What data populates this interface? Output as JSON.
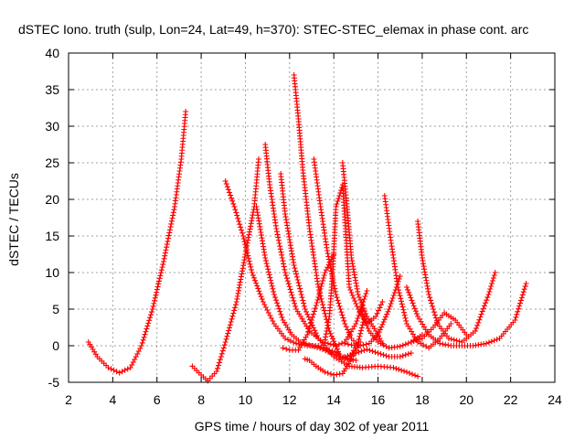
{
  "chart_data": {
    "type": "scatter",
    "title": "dSTEC Iono. truth (sulp, Lon=24, Lat=49, h=370): STEC-STEC_elemax in phase cont. arc",
    "xlabel": "GPS time / hours of day 302 of year 2011",
    "ylabel": "dSTEC  / TECUs",
    "xlim": [
      2,
      24
    ],
    "ylim": [
      -5,
      40
    ],
    "xticks": [
      2,
      4,
      6,
      8,
      10,
      12,
      14,
      16,
      18,
      20,
      22,
      24
    ],
    "yticks": [
      -5,
      0,
      5,
      10,
      15,
      20,
      25,
      30,
      35,
      40
    ],
    "grid": true,
    "marker": "+",
    "color": "#ff0000",
    "series": [
      {
        "x": [
          2.9,
          3.3,
          3.8,
          4.3,
          4.8,
          5.3,
          5.8,
          6.3,
          6.8,
          7.1,
          7.3
        ],
        "y": [
          0.5,
          -1.5,
          -3.0,
          -3.7,
          -3.0,
          0.0,
          5.0,
          11.5,
          19.0,
          25.5,
          32.0
        ]
      },
      {
        "x": [
          7.6,
          8.0,
          8.3,
          8.7,
          9.1,
          9.6,
          10.0,
          10.4,
          10.6
        ],
        "y": [
          -2.8,
          -4.0,
          -4.8,
          -3.5,
          0.5,
          6.0,
          12.5,
          19.0,
          25.5
        ]
      },
      {
        "x": [
          9.1,
          9.5,
          9.9,
          10.3,
          10.8,
          11.3,
          11.8,
          12.3,
          12.8,
          13.3,
          13.8,
          14.2
        ],
        "y": [
          22.5,
          19.0,
          15.0,
          10.0,
          6.0,
          3.0,
          1.0,
          0.3,
          0.0,
          0.0,
          -0.6,
          -1.0
        ]
      },
      {
        "x": [
          10.5,
          10.9,
          11.3,
          11.7,
          12.1,
          12.5,
          13.0,
          13.5,
          14.0,
          14.5,
          15.0
        ],
        "y": [
          19.0,
          12.0,
          7.0,
          3.5,
          1.5,
          0.5,
          0.0,
          -0.5,
          -1.2,
          -1.8,
          -2.0
        ]
      },
      {
        "x": [
          10.9,
          11.1,
          11.4,
          11.8,
          12.3,
          12.9,
          13.5,
          14.1,
          14.5,
          15.0,
          15.5
        ],
        "y": [
          27.5,
          22.0,
          16.0,
          10.0,
          5.0,
          2.0,
          0.5,
          0.0,
          0.5,
          3.0,
          7.5
        ]
      },
      {
        "x": [
          11.6,
          11.8,
          12.2,
          12.7,
          13.3,
          14.0,
          14.7,
          15.3,
          16.0,
          16.7,
          17.3,
          17.8
        ],
        "y": [
          23.5,
          18.0,
          11.0,
          5.0,
          1.0,
          -1.5,
          -2.8,
          -3.0,
          -2.8,
          -3.0,
          -3.6,
          -4.2
        ]
      },
      {
        "x": [
          12.2,
          12.4,
          12.6,
          12.9,
          13.3,
          13.8,
          14.3,
          14.7,
          15.1,
          15.4
        ],
        "y": [
          37.0,
          31.0,
          24.0,
          16.0,
          8.0,
          2.0,
          -1.5,
          -1.8,
          0.5,
          4.0
        ]
      },
      {
        "x": [
          11.7,
          12.0,
          12.4,
          12.8,
          13.2,
          13.6,
          14.0
        ],
        "y": [
          -0.3,
          -0.6,
          -0.6,
          1.5,
          5.5,
          10.0,
          12.5
        ]
      },
      {
        "x": [
          12.7,
          12.9,
          13.2,
          13.6,
          14.0,
          14.4,
          14.8,
          15.2
        ],
        "y": [
          -1.8,
          -2.0,
          -2.8,
          -3.6,
          -4.0,
          -3.8,
          -1.8,
          0.5
        ]
      },
      {
        "x": [
          13.1,
          13.4,
          13.7,
          14.1,
          14.5,
          14.8,
          15.1
        ],
        "y": [
          25.5,
          19.0,
          13.0,
          7.0,
          3.0,
          1.0,
          0.0
        ]
      },
      {
        "x": [
          13.6,
          13.8,
          13.95,
          14.1,
          14.4,
          14.7,
          15.1,
          15.5,
          15.9,
          16.2
        ],
        "y": [
          0.8,
          4.0,
          10.0,
          19.0,
          22.0,
          8.0,
          5.0,
          3.0,
          4.0,
          6.0
        ]
      },
      {
        "x": [
          14.4,
          14.6,
          14.8,
          15.1,
          15.5,
          15.9,
          16.2
        ],
        "y": [
          25.0,
          19.0,
          12.0,
          7.0,
          4.0,
          2.0,
          0.3
        ]
      },
      {
        "x": [
          14.5,
          14.8,
          15.2,
          15.6,
          16.0,
          16.5,
          17.0
        ],
        "y": [
          0.3,
          0.1,
          0.0,
          0.3,
          1.5,
          5.0,
          9.5
        ]
      },
      {
        "x": [
          14.5,
          15.0,
          15.5,
          16.0,
          16.5,
          17.0,
          17.5
        ],
        "y": [
          -1.5,
          -1.0,
          -0.5,
          -1.0,
          -1.5,
          -1.5,
          -1.0
        ]
      },
      {
        "x": [
          16.3,
          16.6,
          16.9,
          17.3,
          17.8,
          18.3,
          18.8,
          19.3
        ],
        "y": [
          20.5,
          14.0,
          8.0,
          3.0,
          0.5,
          -0.3,
          1.0,
          3.0
        ]
      },
      {
        "x": [
          15.2,
          15.6,
          16.0,
          16.5,
          17.0,
          17.5,
          18.0
        ],
        "y": [
          5.0,
          2.0,
          0.5,
          -0.3,
          -0.1,
          0.5,
          1.5
        ]
      },
      {
        "x": [
          17.8,
          18.0,
          18.3,
          18.7,
          19.2,
          19.8,
          20.4,
          21.0,
          21.3
        ],
        "y": [
          17.0,
          12.0,
          7.0,
          3.0,
          1.0,
          0.5,
          2.0,
          7.0,
          10.0
        ]
      },
      {
        "x": [
          17.3,
          17.8,
          18.3,
          18.8,
          19.3,
          19.8,
          20.3,
          20.9,
          21.5,
          22.2,
          22.7
        ],
        "y": [
          8.0,
          4.0,
          1.5,
          0.3,
          0.0,
          0.0,
          0.0,
          0.3,
          1.0,
          3.5,
          8.5
        ]
      },
      {
        "x": [
          17.5,
          18.0,
          18.5,
          19.0,
          19.5,
          20.0
        ],
        "y": [
          0.5,
          1.0,
          2.5,
          4.5,
          3.5,
          1.5
        ]
      }
    ]
  }
}
